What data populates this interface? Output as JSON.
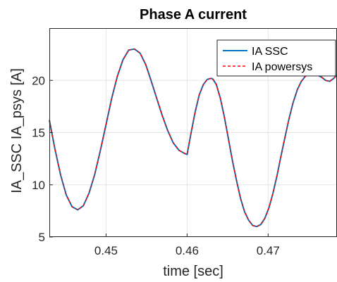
{
  "chart_data": {
    "type": "line",
    "title": "Phase A current",
    "xlabel": "time [sec]",
    "ylabel": "IA_SSC IA_psys [A]",
    "xlim": [
      0.443,
      0.4785
    ],
    "ylim": [
      5,
      25
    ],
    "xticks": [
      0.45,
      0.46,
      0.47
    ],
    "xtick_labels": [
      "0.45",
      "0.46",
      "0.47"
    ],
    "yticks": [
      5,
      10,
      15,
      20
    ],
    "ytick_labels": [
      "5",
      "10",
      "15",
      "20"
    ],
    "grid": true,
    "legend_position": "top-right",
    "series": [
      {
        "name": "IA SSC",
        "color": "#0072BD",
        "style": "solid",
        "x": [
          0.443,
          0.4437,
          0.4444,
          0.4451,
          0.4458,
          0.4465,
          0.4472,
          0.4479,
          0.4486,
          0.4493,
          0.45,
          0.4507,
          0.4514,
          0.4521,
          0.4528,
          0.4535,
          0.4542,
          0.4549,
          0.4555,
          0.4562,
          0.4569,
          0.4576,
          0.4583,
          0.459,
          0.4597,
          0.46,
          0.4605,
          0.461,
          0.4615,
          0.462,
          0.4625,
          0.463,
          0.4632,
          0.4636,
          0.4641,
          0.4646,
          0.4651,
          0.4656,
          0.4661,
          0.4666,
          0.4671,
          0.4676,
          0.4681,
          0.4686,
          0.4691,
          0.4696,
          0.4701,
          0.4706,
          0.4711,
          0.4716,
          0.4721,
          0.4726,
          0.4731,
          0.4736,
          0.4741,
          0.4746,
          0.4751,
          0.4756,
          0.4761,
          0.4766,
          0.4771,
          0.4776,
          0.4781,
          0.4785
        ],
        "y": [
          16.2,
          13.4,
          10.9,
          9.0,
          7.9,
          7.6,
          8.0,
          9.2,
          11.0,
          13.3,
          15.8,
          18.3,
          20.4,
          22.0,
          22.9,
          23.0,
          22.6,
          21.5,
          20.1,
          18.4,
          16.7,
          15.2,
          14.0,
          13.3,
          13.0,
          12.9,
          15.0,
          17.0,
          18.6,
          19.6,
          20.1,
          20.2,
          20.1,
          19.6,
          18.3,
          16.5,
          14.4,
          12.3,
          10.4,
          8.7,
          7.4,
          6.6,
          6.1,
          6.0,
          6.2,
          6.8,
          7.8,
          9.2,
          10.9,
          12.8,
          14.6,
          16.4,
          17.9,
          19.1,
          19.9,
          20.4,
          20.6,
          20.6,
          20.5,
          20.3,
          20.0,
          19.9,
          20.2,
          20.5
        ]
      },
      {
        "name": "IA powersys",
        "color": "#FF0000",
        "style": "dashed",
        "x": [
          0.443,
          0.4437,
          0.4444,
          0.4451,
          0.4458,
          0.4465,
          0.4472,
          0.4479,
          0.4486,
          0.4493,
          0.45,
          0.4507,
          0.4514,
          0.4521,
          0.4528,
          0.4535,
          0.4542,
          0.4549,
          0.4555,
          0.4562,
          0.4569,
          0.4576,
          0.4583,
          0.459,
          0.4597,
          0.46,
          0.4605,
          0.461,
          0.4615,
          0.462,
          0.4625,
          0.463,
          0.4632,
          0.4636,
          0.4641,
          0.4646,
          0.4651,
          0.4656,
          0.4661,
          0.4666,
          0.4671,
          0.4676,
          0.4681,
          0.4686,
          0.4691,
          0.4696,
          0.4701,
          0.4706,
          0.4711,
          0.4716,
          0.4721,
          0.4726,
          0.4731,
          0.4736,
          0.4741,
          0.4746,
          0.4751,
          0.4756,
          0.4761,
          0.4766,
          0.4771,
          0.4776,
          0.4781,
          0.4785
        ],
        "y": [
          16.2,
          13.4,
          10.9,
          9.0,
          7.9,
          7.6,
          8.0,
          9.2,
          11.0,
          13.3,
          15.8,
          18.3,
          20.4,
          22.0,
          22.9,
          23.0,
          22.6,
          21.5,
          20.1,
          18.4,
          16.7,
          15.2,
          14.0,
          13.3,
          13.0,
          12.9,
          15.0,
          17.0,
          18.6,
          19.6,
          20.1,
          20.2,
          20.1,
          19.6,
          18.3,
          16.5,
          14.4,
          12.3,
          10.4,
          8.7,
          7.4,
          6.6,
          6.1,
          6.0,
          6.2,
          6.8,
          7.8,
          9.2,
          10.9,
          12.8,
          14.6,
          16.4,
          17.9,
          19.1,
          19.9,
          20.4,
          20.6,
          20.6,
          20.5,
          20.3,
          20.0,
          19.9,
          20.2,
          20.5
        ]
      }
    ]
  }
}
